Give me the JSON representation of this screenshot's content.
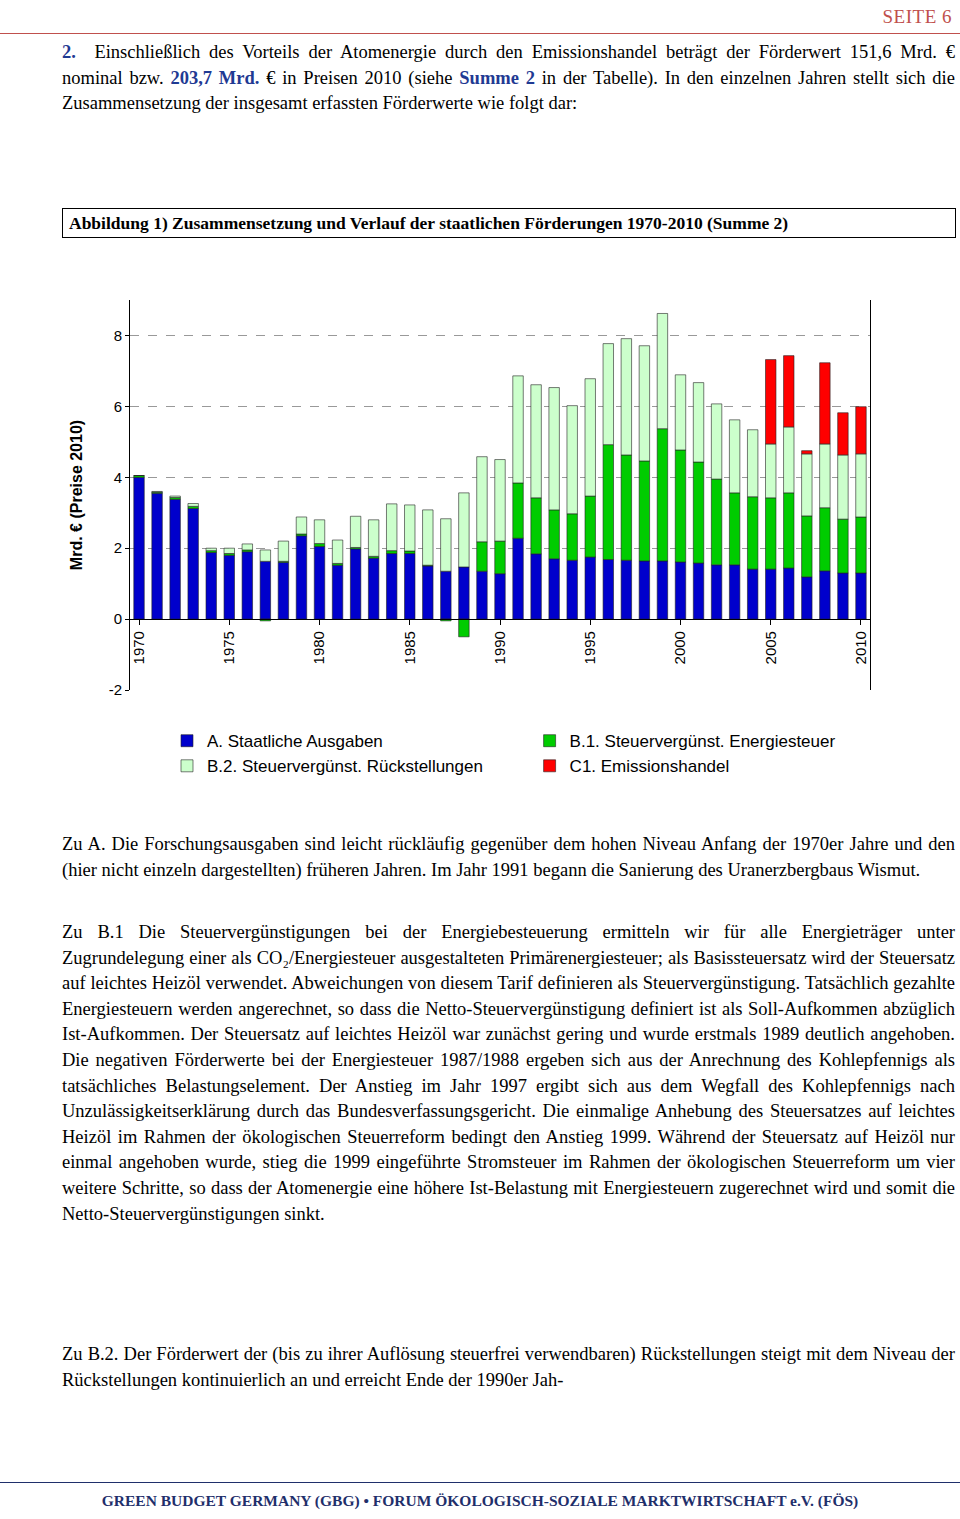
{
  "document": {
    "header": "SEITE 6",
    "intro": {
      "number": "2.",
      "runs": [
        {
          "text": "Einschließlich des Vorteils der Atomenergie durch den Emissionshandel beträgt der Förderwert 151,6 Mrd. € nominal bzw. ",
          "emphasis": false
        },
        {
          "text": "203,7 Mrd.",
          "emphasis": true
        },
        {
          "text": " € in Preisen 2010 (siehe ",
          "emphasis": false
        },
        {
          "text": "Summe 2",
          "emphasis": true
        },
        {
          "text": " in der Tabelle). In den einzelnen Jahren stellt sich die Zusammensetzung der insgesamt erfassten Förderwerte wie folgt dar:",
          "emphasis": false
        }
      ]
    },
    "sections": [
      "Zu A. Die Forschungsausgaben sind leicht rückläufig gegenüber dem hohen Niveau Anfang der 1970er Jahre und den (hier nicht einzeln dargestellten) früheren Jahren. Im Jahr 1991 begann die Sanierung des Uranerzbergbaus Wismut.",
      "Zu B.1 Die Steuervergünstigungen bei der Energiebesteuerung ermitteln wir für alle Energieträger unter Zugrundelegung einer als CO₂/Energiesteuer ausgestalteten Primärenergiesteuer; als Basissteuersatz wird der Steuersatz auf leichtes Heizöl verwendet. Abweichungen von diesem Tarif definieren als Steuervergünstigung. Tatsächlich gezahlte Energiesteuern werden angerechnet, so dass die Netto-Steuervergünstigung definiert ist als Soll-Aufkommen abzüglich Ist-Aufkommen. Der Steuersatz auf leichtes Heizöl war zunächst gering und wurde erstmals 1989 deutlich angehoben. Die negativen Förderwerte bei der Energiesteuer 1987/1988 ergeben sich aus der Anrechnung des Kohlepfennigs als tatsächliches Belastungselement. Der Anstieg im Jahr 1997 ergibt sich aus dem Wegfall des Kohlepfennigs nach Unzulässigkeitserklärung durch das Bundesverfassungsgericht. Die einmalige Anhebung des Steuersatzes auf leichtes Heizöl im Rahmen der ökologischen Steuerreform bedingt den Anstieg 1999. Während der Steuersatz auf Heizöl nur einmal angehoben wurde, stieg die 1999 eingeführte Stromsteuer im Rahmen der ökologischen Steuerreform um vier weitere Schritte, so dass der Atomenergie eine höhere Ist-Belastung mit Energiesteuern zugerechnet wird und somit die Netto-Steuervergünstigungen sinkt.",
      "Zu B.2. Der Förderwert der (bis zu ihrer Auflösung steuerfrei verwendbaren) Rückstellungen steigt mit dem Niveau der Rückstellungen kontinuierlich an und erreicht Ende der 1990er Jah-"
    ],
    "footer": "GREEN BUDGET GERMANY (GBG) • FORUM ÖKOLOGISCH-SOZIALE MARKTWIRTSCHAFT e.V. (FÖS)"
  },
  "chart_data": {
    "type": "bar",
    "title": "Abbildung 1) Zusammensetzung und Verlauf der staatlichen Förderungen 1970-2010 (Summe 2)",
    "ylabel": "Mrd. € (Preise 2010)",
    "stacked": true,
    "grid": true,
    "legend": "bottom",
    "x": [
      1970,
      1971,
      1972,
      1973,
      1974,
      1975,
      1976,
      1977,
      1978,
      1979,
      1980,
      1981,
      1982,
      1983,
      1984,
      1985,
      1986,
      1987,
      1988,
      1989,
      1990,
      1991,
      1992,
      1993,
      1994,
      1995,
      1996,
      1997,
      1998,
      1999,
      2000,
      2001,
      2002,
      2003,
      2004,
      2005,
      2006,
      2007,
      2008,
      2009,
      2010
    ],
    "xlim": [
      1969.5,
      2010.5
    ],
    "xticks": [
      1970,
      1975,
      1980,
      1985,
      1990,
      1995,
      2000,
      2005,
      2010
    ],
    "ylim": [
      -2,
      9
    ],
    "yticks": [
      -2,
      0,
      2,
      4,
      6,
      8
    ],
    "series": [
      {
        "name": "A. Staatliche Ausgaben",
        "color": "#0000cc",
        "values": [
          4.0,
          3.55,
          3.38,
          3.12,
          1.88,
          1.8,
          1.9,
          1.63,
          1.6,
          2.35,
          2.05,
          1.52,
          1.98,
          1.72,
          1.85,
          1.85,
          1.5,
          1.35,
          1.47,
          1.35,
          1.28,
          2.28,
          1.84,
          1.7,
          1.66,
          1.75,
          1.68,
          1.66,
          1.64,
          1.64,
          1.61,
          1.58,
          1.53,
          1.53,
          1.41,
          1.41,
          1.44,
          1.19,
          1.36,
          1.3,
          1.3
        ]
      },
      {
        "name": "B.1. Steuervergünst. Energiesteuer",
        "color": "#00cc00",
        "values": [
          0.05,
          0.03,
          0.05,
          0.06,
          0.05,
          0.05,
          0.05,
          -0.05,
          0.03,
          0.05,
          0.08,
          0.05,
          0.04,
          0.05,
          0.08,
          0.07,
          0.02,
          -0.05,
          -0.5,
          0.83,
          0.92,
          1.56,
          1.58,
          1.38,
          1.31,
          1.72,
          3.24,
          2.97,
          2.82,
          3.73,
          3.16,
          2.85,
          2.42,
          2.03,
          2.04,
          2.01,
          2.12,
          1.72,
          1.78,
          1.52,
          1.58
        ]
      },
      {
        "name": "B.2. Steuervergünst. Rückstellungen",
        "color": "#ccffcc",
        "values": [
          0.0,
          0.02,
          0.04,
          0.08,
          0.07,
          0.15,
          0.17,
          0.32,
          0.57,
          0.48,
          0.67,
          0.66,
          0.88,
          1.03,
          1.32,
          1.3,
          1.56,
          1.48,
          2.09,
          2.4,
          2.3,
          3.02,
          3.19,
          3.45,
          3.05,
          3.31,
          2.85,
          3.28,
          3.25,
          3.25,
          2.12,
          2.24,
          2.12,
          2.06,
          1.89,
          1.52,
          1.86,
          1.75,
          1.8,
          1.81,
          1.78
        ]
      },
      {
        "name": "C1. Emissionshandel",
        "color": "#ff0000",
        "values": [
          null,
          null,
          null,
          null,
          null,
          null,
          null,
          null,
          null,
          null,
          null,
          null,
          null,
          null,
          null,
          null,
          null,
          null,
          null,
          null,
          null,
          null,
          null,
          null,
          null,
          null,
          null,
          null,
          null,
          null,
          null,
          null,
          null,
          null,
          null,
          2.38,
          2.01,
          0.09,
          2.29,
          1.19,
          1.33
        ]
      }
    ]
  }
}
